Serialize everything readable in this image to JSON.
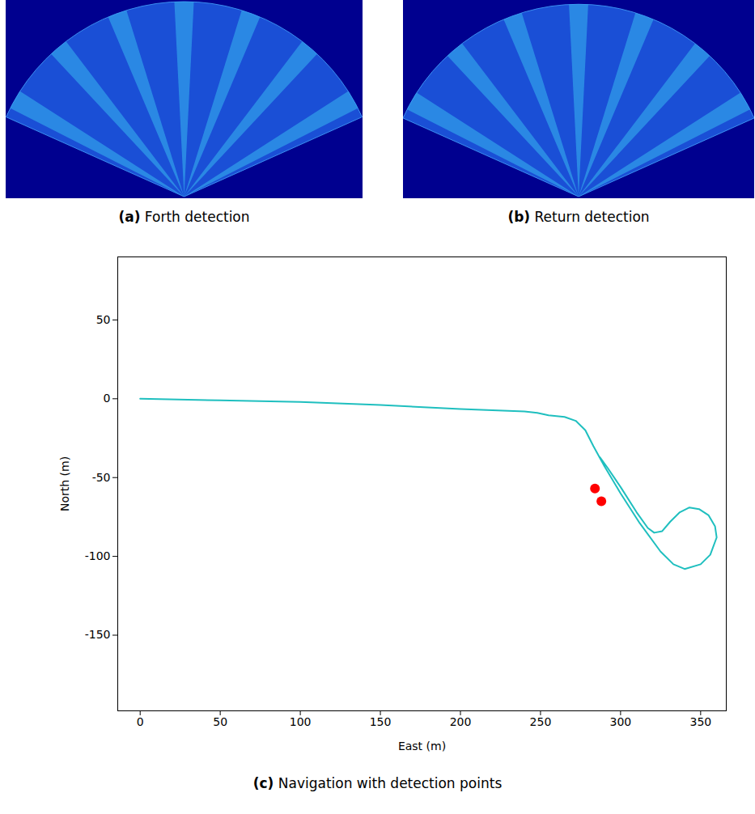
{
  "panels": [
    {
      "label": "(a)",
      "caption": "Forth detection"
    },
    {
      "label": "(b)",
      "caption": "Return detection"
    }
  ],
  "chart_data": {
    "type": "line",
    "label": "(c)",
    "caption": "Navigation with detection points",
    "x_label": "East (m)",
    "y_label": "North (m)",
    "xlim": [
      -14,
      366
    ],
    "ylim": [
      -198,
      90
    ],
    "xticks": [
      0,
      50,
      100,
      150,
      200,
      250,
      300,
      350
    ],
    "yticks": [
      -150,
      -100,
      -50,
      0,
      50
    ],
    "grid": false,
    "series": [
      {
        "type": "line",
        "color": "#1fbfbf",
        "line_style": "solid",
        "x": [
          0,
          50,
          100,
          150,
          200,
          240,
          248,
          255,
          265,
          272,
          278,
          283,
          290,
          300,
          312,
          325,
          333,
          340,
          350,
          356,
          360,
          359,
          355,
          349,
          343,
          337,
          331,
          326,
          321,
          317,
          310,
          300,
          292,
          287
        ],
        "values": [
          0,
          -1,
          -2,
          -4,
          -6.5,
          -8,
          -9,
          -10.5,
          -11.5,
          -14,
          -20,
          -30,
          -43,
          -60,
          -79,
          -97,
          -105,
          -108,
          -105,
          -99,
          -88,
          -81,
          -74,
          -70,
          -69,
          -72,
          -78,
          -84,
          -85,
          -82,
          -72,
          -56,
          -44,
          -37
        ]
      },
      {
        "type": "scatter",
        "color": "#ff0000",
        "marker": "circle",
        "x": [
          284,
          288
        ],
        "values": [
          -57,
          -65
        ]
      }
    ]
  }
}
